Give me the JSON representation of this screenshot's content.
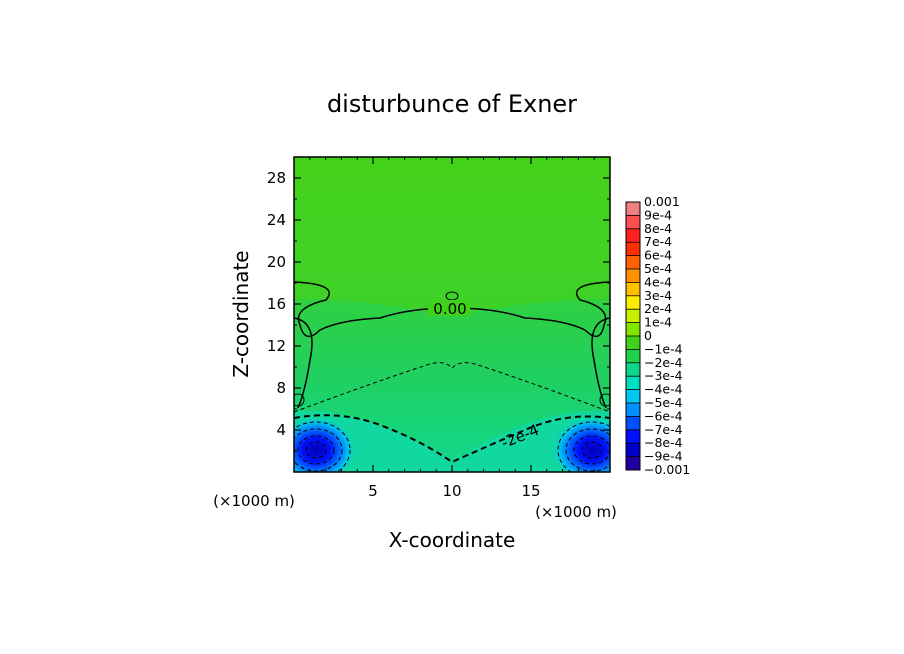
{
  "chart_data": {
    "type": "heatmap",
    "title": "disturbunce of Exner",
    "xlabel": "X-coordinate",
    "ylabel": "Z-coordinate",
    "x_unit": "(×1000 m)",
    "z_unit": "(×1000 m)",
    "xlim": [
      0,
      20
    ],
    "ylim": [
      0,
      30
    ],
    "x_ticks": [
      "5",
      "10",
      "15"
    ],
    "x_tick_values": [
      5,
      10,
      15
    ],
    "y_ticks": [
      "4",
      "8",
      "12",
      "16",
      "20",
      "24",
      "28"
    ],
    "y_tick_values": [
      4,
      8,
      12,
      16,
      20,
      24,
      28
    ],
    "colorbar": {
      "levels": [
        "0.001",
        "9e-4",
        "8e-4",
        "7e-4",
        "6e-4",
        "5e-4",
        "4e-4",
        "3e-4",
        "2e-4",
        "1e-4",
        "0",
        "−1e-4",
        "−2e-4",
        "−3e-4",
        "−4e-4",
        "−5e-4",
        "−6e-4",
        "−7e-4",
        "−8e-4",
        "−9e-4",
        "−0.001"
      ],
      "colors": [
        "#f08080",
        "#ff5050",
        "#ff2020",
        "#ff3000",
        "#ff6000",
        "#ff9000",
        "#ffc000",
        "#ffee00",
        "#c8f000",
        "#80e600",
        "#3fd21a",
        "#20d24a",
        "#10d68a",
        "#00e0c0",
        "#00c8f0",
        "#0090ff",
        "#0050ff",
        "#0010ff",
        "#0000c8",
        "#2000a0",
        "#5000a0"
      ]
    },
    "contour_labels": [
      "0.00",
      "-2e-4"
    ]
  }
}
